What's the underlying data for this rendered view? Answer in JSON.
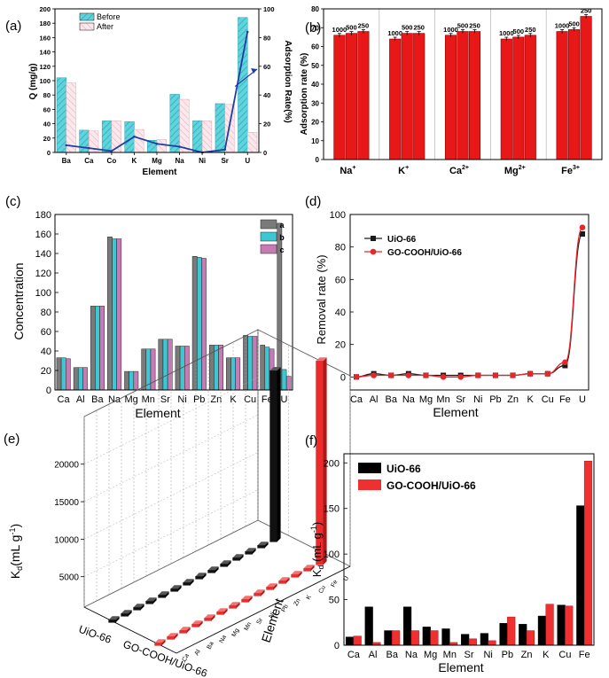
{
  "figure": {
    "aria_label": "Six-panel adsorption figure"
  },
  "chart_data": [
    {
      "panel": "(a)",
      "type": "bar",
      "xlabel": "Element",
      "ylabel": "Q (mg/g)",
      "ylabel_right": "Adsorption Rate(%)",
      "categories": [
        "Ba",
        "Ca",
        "Co",
        "K",
        "Mg",
        "Na",
        "Ni",
        "Sr",
        "U"
      ],
      "ylim": [
        0,
        200
      ],
      "yticks": [
        0,
        20,
        40,
        60,
        80,
        100,
        120,
        140,
        160,
        180,
        200
      ],
      "ylim_right": [
        0,
        100
      ],
      "yticks_right": [
        0,
        20,
        40,
        60,
        80,
        100
      ],
      "legend_position": "top-left",
      "series": [
        {
          "name": "Before",
          "values": [
            104,
            31,
            44,
            43,
            17,
            81,
            44,
            68,
            188
          ],
          "color": "#5fd4dc",
          "pattern": "hatch"
        },
        {
          "name": "After",
          "values": [
            97,
            30,
            44,
            32,
            18,
            74,
            44,
            67,
            28
          ],
          "color": "#f7dbe1",
          "pattern": "hatch-light"
        }
      ],
      "line": {
        "name": "Adsorption Rate",
        "axis": "right",
        "values": [
          5,
          3,
          1,
          11,
          6,
          4,
          0,
          2,
          84
        ],
        "color": "#1f3fa0"
      },
      "annotation_arrow": "points to right axis"
    },
    {
      "panel": "(b)",
      "type": "bar",
      "ylabel": "Adsorption rate (%)",
      "categories": [
        "Na",
        "K",
        "Ca",
        "Mg",
        "Fe"
      ],
      "category_superscripts": [
        "+",
        "+",
        "2+",
        "2+",
        "3+"
      ],
      "ylim": [
        0,
        80
      ],
      "yticks": [
        0,
        10,
        20,
        30,
        40,
        50,
        60,
        70,
        80
      ],
      "bar_labels": [
        "1000",
        "500",
        "250"
      ],
      "series_values": [
        [
          66,
          67,
          68
        ],
        [
          64,
          67,
          67
        ],
        [
          66,
          68,
          68
        ],
        [
          64,
          65,
          66
        ],
        [
          68,
          69,
          76
        ]
      ],
      "color": "#e81818",
      "grid": "vertical"
    },
    {
      "panel": "(c)",
      "type": "bar",
      "xlabel": "Element",
      "ylabel": "Concentration",
      "categories": [
        "Ca",
        "Al",
        "Ba",
        "Na",
        "Mg",
        "Mn",
        "Sr",
        "Ni",
        "Pb",
        "Zn",
        "K",
        "Cu",
        "Fe",
        "U"
      ],
      "ylim": [
        0,
        180
      ],
      "yticks": [
        0,
        20,
        40,
        60,
        80,
        100,
        120,
        140,
        160,
        180
      ],
      "legend_position": "top-right",
      "series": [
        {
          "name": "a",
          "values": [
            33,
            23,
            86,
            157,
            19,
            42,
            52,
            45,
            137,
            46,
            33,
            56,
            46,
            171
          ],
          "color": "#7a7a7a"
        },
        {
          "name": "b",
          "values": [
            33,
            23,
            86,
            155,
            19,
            42,
            52,
            45,
            136,
            46,
            33,
            55,
            44,
            21
          ],
          "color": "#3cc8d2"
        },
        {
          "name": "c",
          "values": [
            32,
            23,
            86,
            155,
            19,
            42,
            52,
            45,
            135,
            46,
            33,
            55,
            42,
            14
          ],
          "color": "#c77bb5"
        }
      ]
    },
    {
      "panel": "(d)",
      "type": "line",
      "xlabel": "Element",
      "ylabel": "Removal rate (%)",
      "categories": [
        "Ca",
        "Al",
        "Ba",
        "Na",
        "Mg",
        "Mn",
        "Sr",
        "Ni",
        "Pb",
        "Zn",
        "K",
        "Cu",
        "Fe",
        "U"
      ],
      "ylim": [
        -8,
        100
      ],
      "yticks": [
        0,
        20,
        40,
        60,
        80,
        100
      ],
      "legend_position": "top-left",
      "series": [
        {
          "name": "UiO-66",
          "values": [
            0,
            2,
            1,
            2,
            1,
            1,
            1,
            1,
            1,
            1,
            2,
            2,
            7,
            88
          ],
          "color": "#1a1a1a",
          "marker": "square"
        },
        {
          "name": "GO-COOH/UiO-66",
          "values": [
            0,
            1,
            1,
            1,
            1,
            0,
            0,
            1,
            1,
            1,
            2,
            2,
            9,
            92
          ],
          "color": "#e8262a",
          "marker": "circle"
        }
      ]
    },
    {
      "panel": "(e)",
      "type": "bar",
      "subtype": "3d",
      "zlabel": "Kd (mL g-1)",
      "zlabel_main": "K",
      "zlabel_sub": "d",
      "zlabel_rest": "(mL g",
      "zlabel_sup": "-1",
      "zlabel_close": ")",
      "zticks": [
        5000,
        10000,
        15000,
        20000
      ],
      "zlim": [
        0,
        25000
      ],
      "series_axis_labels": [
        "UiO-66",
        "GO-COOH/UiO-66"
      ],
      "element_axis_label": "Element",
      "element_ticks": [
        "Ca",
        "Al",
        "Ba",
        "Na",
        "Mg",
        "Mn",
        "Sr",
        "Ni",
        "Pb",
        "Zn",
        "K",
        "Cu",
        "Fe",
        "U"
      ],
      "series": [
        {
          "name": "UiO-66",
          "values": [
            40,
            40,
            10,
            40,
            15,
            15,
            10,
            10,
            25,
            20,
            30,
            40,
            150,
            21000
          ],
          "color": "#111111"
        },
        {
          "name": "GO-COOH/UiO-66",
          "values": [
            10,
            5,
            15,
            15,
            15,
            5,
            10,
            5,
            30,
            15,
            45,
            40,
            200,
            25000
          ],
          "color": "#ee2a2a"
        }
      ]
    },
    {
      "panel": "(f)",
      "type": "bar",
      "xlabel": "Element",
      "ylabel": "Kd (mL g-1)",
      "ylabel_main": "K",
      "ylabel_sub": "d",
      "ylabel_rest": " (mL g",
      "ylabel_sup": "-1",
      "ylabel_close": ")",
      "categories": [
        "Ca",
        "Al",
        "Ba",
        "Na",
        "Mg",
        "Mn",
        "Sr",
        "Ni",
        "Pb",
        "Zn",
        "K",
        "Cu",
        "Fe"
      ],
      "ylim": [
        0,
        210
      ],
      "yticks": [
        0,
        50,
        100,
        150,
        200
      ],
      "legend_position": "top-left",
      "series": [
        {
          "name": "UiO-66",
          "values": [
            9,
            42,
            16,
            42,
            20,
            18,
            12,
            13,
            24,
            23,
            32,
            44,
            153
          ],
          "color": "#000000"
        },
        {
          "name": "GO-COOH/UiO-66",
          "values": [
            10,
            3,
            16,
            16,
            16,
            3,
            7,
            5,
            31,
            16,
            45,
            43,
            202
          ],
          "color": "#ee3030"
        }
      ]
    }
  ]
}
